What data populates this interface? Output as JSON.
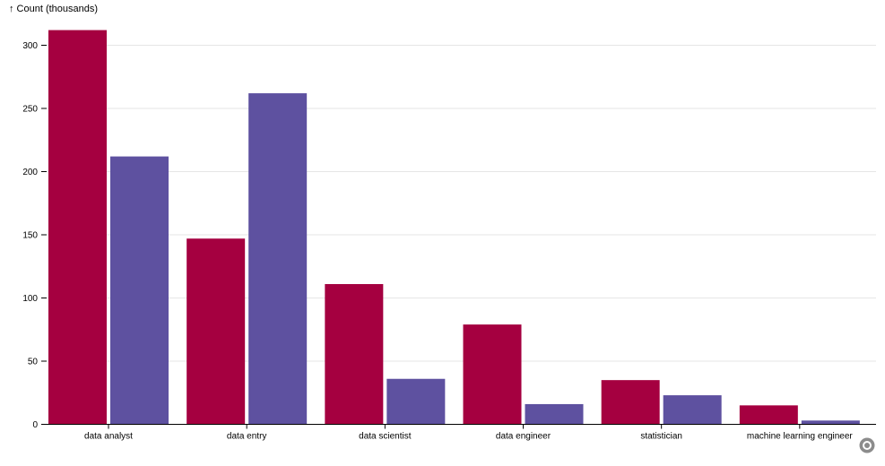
{
  "chart_data": {
    "type": "bar",
    "ylabel": "↑ Count (thousands)",
    "categories": [
      "data analyst",
      "data entry",
      "data scientist",
      "data engineer",
      "statistician",
      "machine learning engineer"
    ],
    "series": [
      {
        "values": [
          312,
          147,
          111,
          79,
          35,
          15
        ],
        "color": "#a50040"
      },
      {
        "values": [
          212,
          262,
          36,
          16,
          23,
          3
        ],
        "color": "#5e51a0"
      }
    ],
    "yticks": [
      0,
      50,
      100,
      150,
      200,
      250,
      300
    ],
    "ylim": [
      0,
      330
    ],
    "grid": true,
    "legend": "none"
  },
  "controls": {
    "options_icon": "ring-icon"
  }
}
